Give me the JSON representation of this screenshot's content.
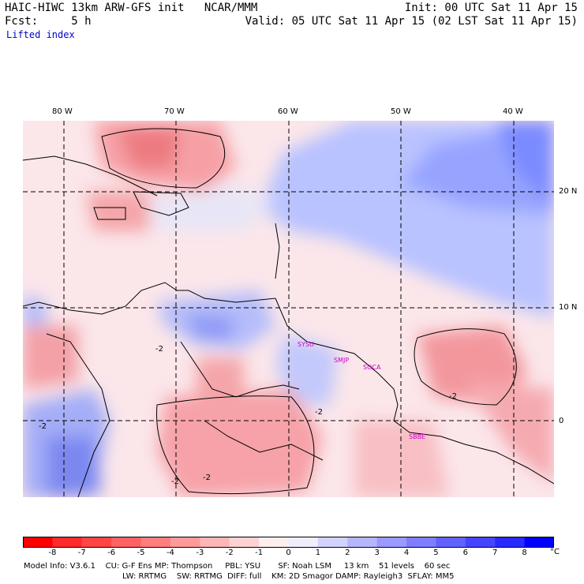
{
  "header": {
    "title": "HAIC-HIWC 13km ARW-GFS init   NCAR/MMM",
    "init": "Init: 00 UTC Sat 11 Apr 15",
    "fcst": "Fcst:     5 h",
    "valid": "Valid: 05 UTC Sat 11 Apr 15 (02 LST Sat 11 Apr 15)",
    "field": "Lifted index"
  },
  "map": {
    "lon_labels": [
      "80 W",
      "70 W",
      "60 W",
      "50 W",
      "40 W"
    ],
    "lat_labels": [
      "20 N",
      "10 N",
      "0"
    ],
    "stations": [
      "SYSU",
      "SMJP",
      "SOCA",
      "SBBE"
    ],
    "contour_labels": [
      "-2",
      "-2",
      "-2",
      "-2",
      "-2",
      "-2"
    ]
  },
  "legend": {
    "ticks": [
      "-8",
      "-7",
      "-6",
      "-5",
      "-4",
      "-3",
      "-2",
      "-1",
      "0",
      "1",
      "2",
      "3",
      "4",
      "5",
      "6",
      "7",
      "8"
    ],
    "unit": "°C",
    "colors": [
      "#ff0000",
      "#ff2a2a",
      "#ff4545",
      "#ff6262",
      "#ff7e7e",
      "#ff9a9a",
      "#ffb6b6",
      "#ffd2d2",
      "#ffeeee",
      "#eeeeff",
      "#d2d2ff",
      "#b6b6ff",
      "#9a9aff",
      "#7e7eff",
      "#6262ff",
      "#4545ff",
      "#2a2aff",
      "#0000ff"
    ]
  },
  "footer": {
    "line1": "Model Info: V3.6.1    CU: G-F Ens MP: Thompson     PBL: YSU       SF: Noah LSM     13 km    51 levels    60 sec",
    "line2": "LW: RRTMG    SW: RRTMG  DIFF: full    KM: 2D Smagor DAMP: Rayleigh3  SFLAY: MM5"
  }
}
